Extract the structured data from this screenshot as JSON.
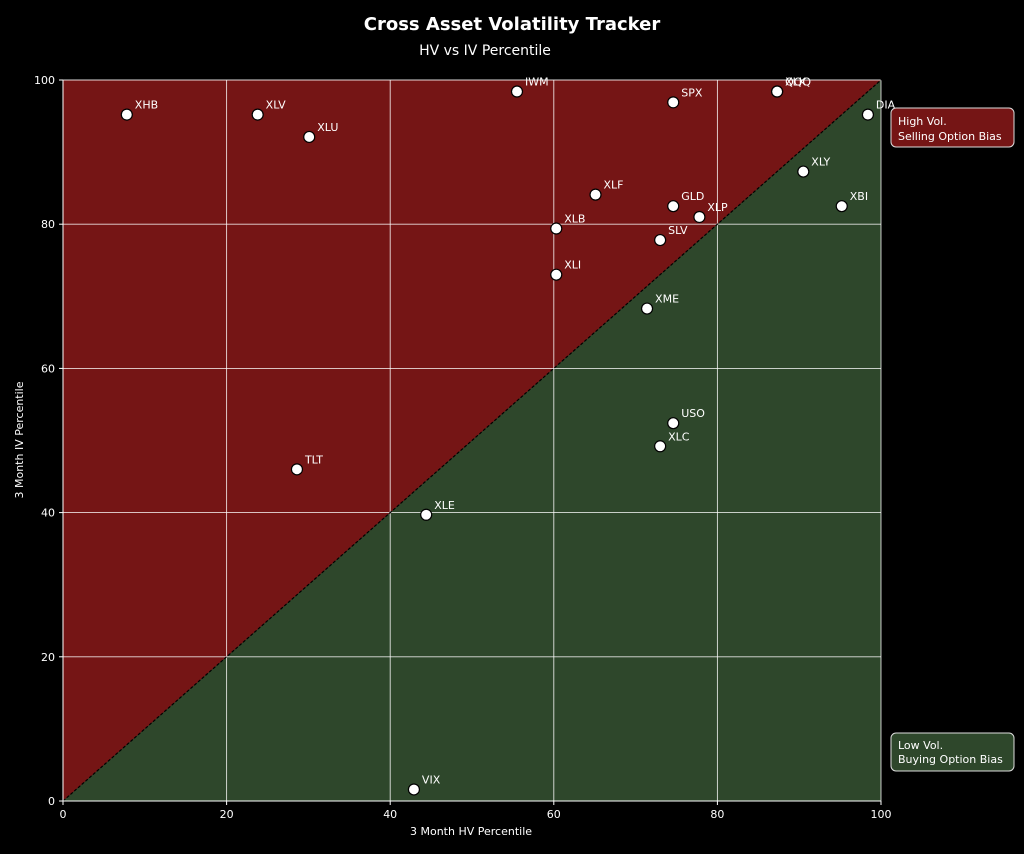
{
  "chart_data": {
    "type": "scatter",
    "title": "Cross Asset Volatility Tracker",
    "subtitle": "HV vs IV Percentile",
    "xlabel": "3 Month HV Percentile",
    "ylabel": "3 Month IV Percentile",
    "xlim": [
      0,
      100
    ],
    "ylim": [
      0,
      100
    ],
    "xticks": [
      "0",
      "20",
      "40",
      "60",
      "80",
      "100"
    ],
    "yticks": [
      "0",
      "20",
      "40",
      "60",
      "80",
      "100"
    ],
    "grid": true,
    "diagonal": "dashed",
    "regions": [
      {
        "name": "high",
        "label_lines": [
          "High Vol.",
          "Selling Option Bias"
        ],
        "color": "#751515",
        "placement": "right-top"
      },
      {
        "name": "low",
        "label_lines": [
          "Low Vol.",
          "Buying Option Bias"
        ],
        "color": "#2e472b",
        "placement": "right-bottom"
      }
    ],
    "points": [
      {
        "label": "XHB",
        "x": 7.8,
        "y": 95.2
      },
      {
        "label": "XLV",
        "x": 23.8,
        "y": 95.2
      },
      {
        "label": "XLU",
        "x": 30.1,
        "y": 92.1
      },
      {
        "label": "IWM",
        "x": 55.5,
        "y": 98.4
      },
      {
        "label": "SPX",
        "x": 74.6,
        "y": 96.9
      },
      {
        "label": "XLK",
        "x": 87.3,
        "y": 98.4
      },
      {
        "label": "QQQ",
        "x": 87.3,
        "y": 98.4
      },
      {
        "label": "DIA",
        "x": 98.4,
        "y": 95.2
      },
      {
        "label": "XLF",
        "x": 65.1,
        "y": 84.1
      },
      {
        "label": "GLD",
        "x": 74.6,
        "y": 82.5
      },
      {
        "label": "XLP",
        "x": 77.8,
        "y": 81.0
      },
      {
        "label": "XLB",
        "x": 60.3,
        "y": 79.4
      },
      {
        "label": "SLV",
        "x": 73.0,
        "y": 77.8
      },
      {
        "label": "XLY",
        "x": 90.5,
        "y": 87.3
      },
      {
        "label": "XBI",
        "x": 95.2,
        "y": 82.5
      },
      {
        "label": "XLI",
        "x": 60.3,
        "y": 73.0
      },
      {
        "label": "XME",
        "x": 71.4,
        "y": 68.3
      },
      {
        "label": "USO",
        "x": 74.6,
        "y": 52.4
      },
      {
        "label": "XLC",
        "x": 73.0,
        "y": 49.2
      },
      {
        "label": "TLT",
        "x": 28.6,
        "y": 46.0
      },
      {
        "label": "XLE",
        "x": 44.4,
        "y": 39.7
      },
      {
        "label": "VIX",
        "x": 42.9,
        "y": 1.6
      }
    ]
  }
}
